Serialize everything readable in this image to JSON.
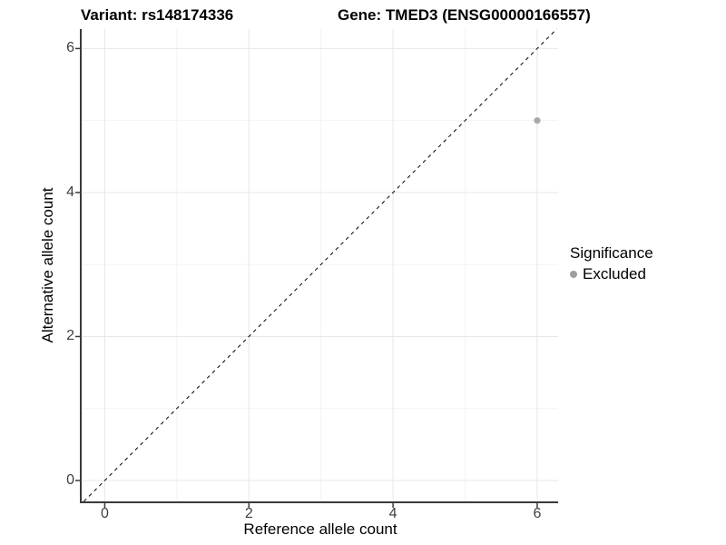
{
  "header": {
    "title_left": "Variant: rs148174336",
    "title_right": "Gene: TMED3 (ENSG00000166557)"
  },
  "chart_data": {
    "type": "scatter",
    "xlabel": "Reference allele count",
    "ylabel": "Alternative allele count",
    "x_ticks": [
      0,
      2,
      4,
      6
    ],
    "y_ticks": [
      0,
      2,
      4,
      6
    ],
    "x_minor_ticks": [
      1,
      3,
      5
    ],
    "y_minor_ticks": [
      1,
      3,
      5
    ],
    "xlim": [
      -0.32,
      6.29
    ],
    "ylim": [
      -0.29,
      6.27
    ],
    "points": [
      {
        "x": 6,
        "y": 5,
        "series": "Excluded"
      }
    ],
    "reference_line": {
      "equation": "y = x",
      "style": "dashed",
      "color": "#000000"
    },
    "legend": {
      "title": "Significance",
      "position": "right",
      "items": [
        {
          "label": "Excluded",
          "color": "#9e9e9e"
        }
      ]
    },
    "grid": "major+minor",
    "colors": {
      "point": "#a9a9a9",
      "grid_major": "#e7e7e7",
      "grid_minor": "#f3f3f3",
      "axis_line": "#3a3a3a",
      "tick_mark": "#3a3a3a"
    }
  }
}
